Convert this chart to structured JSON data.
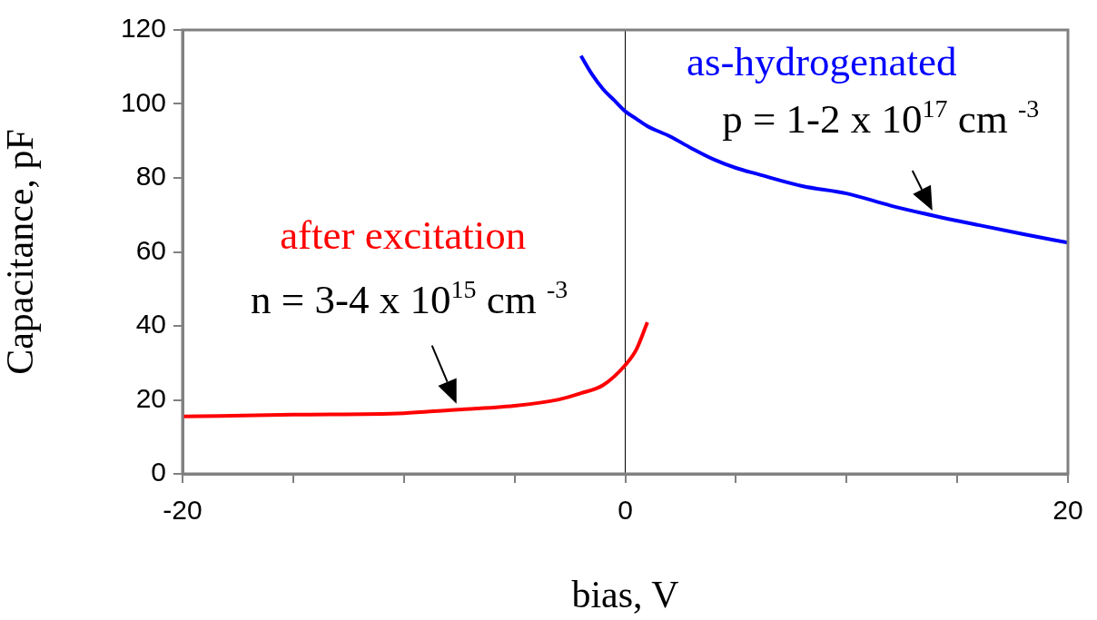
{
  "chart_data": {
    "type": "line",
    "xlabel": "bias, V",
    "ylabel": "Capacitance, pF",
    "xlim": [
      -20,
      20
    ],
    "xticks": [
      -20,
      {
        "value": -15,
        "label": null
      },
      {
        "value": -10,
        "label": null
      },
      {
        "value": -5,
        "label": null
      },
      0,
      {
        "value": 5,
        "label": null
      },
      {
        "value": 10,
        "label": null
      },
      {
        "value": 15,
        "label": null
      },
      20
    ],
    "ylim": [
      0,
      120
    ],
    "yticks": [
      0,
      20,
      40,
      60,
      80,
      100,
      120
    ],
    "legend": false,
    "ref_lines": [
      {
        "axis": "x",
        "value": 0,
        "color": "#000000"
      }
    ],
    "series": [
      {
        "name": "as-hydrogenated",
        "color": "#0000ff",
        "x": [
          -2,
          -1.5,
          -1,
          -0.5,
          0,
          0.5,
          1,
          2,
          3,
          4,
          5,
          6,
          8,
          10,
          12,
          14,
          16,
          18,
          20
        ],
        "values": [
          113,
          108,
          104,
          101,
          98,
          96,
          94,
          91.3,
          88,
          85,
          82.7,
          81,
          77.8,
          75.8,
          72.5,
          69.7,
          67.2,
          64.8,
          62.5
        ]
      },
      {
        "name": "after excitation",
        "color": "#ff0000",
        "x": [
          -20,
          -15,
          -10,
          -8,
          -5,
          -3,
          -2,
          -1,
          0,
          0.5,
          1
        ],
        "values": [
          15.5,
          16,
          16.4,
          17.2,
          18.4,
          20.1,
          21.8,
          24,
          29.4,
          33.6,
          41
        ]
      }
    ],
    "annotations": [
      {
        "text": "p = 1-2 x 10$^{17}$ cm $^{-3}$",
        "x": 14,
        "y": 69.7
      },
      {
        "text": "n = 3-4 x 10$^{15}$ cm $^{-3}$",
        "x": -7.5,
        "y": 17.5
      }
    ]
  }
}
